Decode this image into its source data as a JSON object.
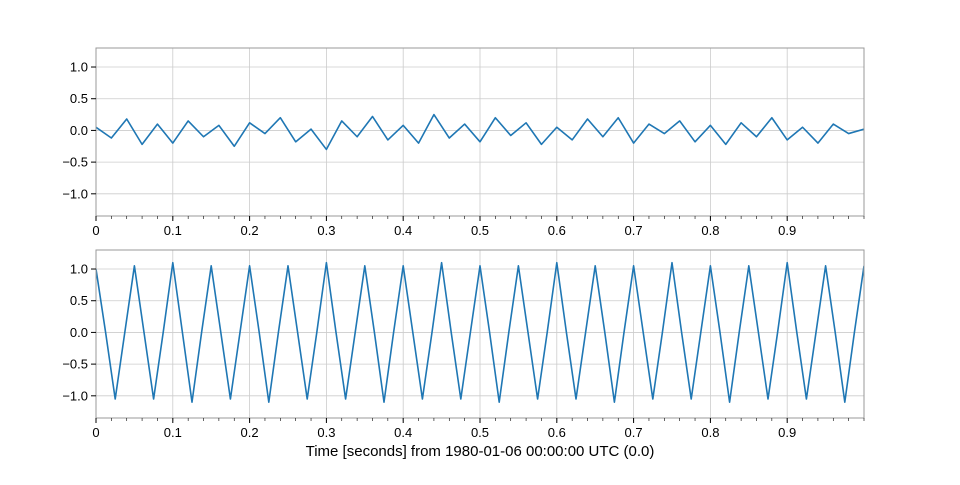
{
  "chart_data": [
    {
      "type": "line",
      "title": "",
      "xlabel": "",
      "ylabel": "",
      "xlim": [
        0,
        1
      ],
      "ylim": [
        -1.35,
        1.3
      ],
      "grid": true,
      "xticks": [
        0,
        0.1,
        0.2,
        0.3,
        0.4,
        0.5,
        0.6,
        0.7,
        0.8,
        0.9
      ],
      "xticklabels": [
        "0",
        "0.1",
        "0.2",
        "0.3",
        "0.4",
        "0.5",
        "0.6",
        "0.7",
        "0.8",
        "0.9"
      ],
      "yticks": [
        -1.0,
        -0.5,
        0.0,
        0.5,
        1.0
      ],
      "yticklabels": [
        "−1.0",
        "−0.5",
        "0.0",
        "0.5",
        "1.0"
      ],
      "color": "#1f77b4",
      "series": [
        {
          "description": "noise around zero",
          "x": [
            0,
            0.02,
            0.04,
            0.06,
            0.08,
            0.1,
            0.12,
            0.14,
            0.16,
            0.18,
            0.2,
            0.22,
            0.24,
            0.26,
            0.28,
            0.3,
            0.32,
            0.34,
            0.36,
            0.38,
            0.4,
            0.42,
            0.44,
            0.46,
            0.48,
            0.5,
            0.52,
            0.54,
            0.56,
            0.58,
            0.6,
            0.62,
            0.64,
            0.66,
            0.68,
            0.7,
            0.72,
            0.74,
            0.76,
            0.78,
            0.8,
            0.82,
            0.84,
            0.86,
            0.88,
            0.9,
            0.92,
            0.94,
            0.96,
            0.98,
            1.0
          ],
          "y": [
            0.05,
            -0.12,
            0.18,
            -0.22,
            0.1,
            -0.2,
            0.15,
            -0.1,
            0.08,
            -0.25,
            0.12,
            -0.05,
            0.2,
            -0.18,
            0.02,
            -0.3,
            0.15,
            -0.1,
            0.22,
            -0.15,
            0.08,
            -0.2,
            0.25,
            -0.12,
            0.1,
            -0.18,
            0.2,
            -0.08,
            0.12,
            -0.22,
            0.05,
            -0.15,
            0.18,
            -0.1,
            0.2,
            -0.2,
            0.1,
            -0.05,
            0.15,
            -0.18,
            0.08,
            -0.22,
            0.12,
            -0.1,
            0.2,
            -0.15,
            0.05,
            -0.2,
            0.1,
            -0.05,
            0.02
          ]
        }
      ]
    },
    {
      "type": "line",
      "title": "",
      "xlabel": "Time [seconds] from 1980-01-06 00:00:00 UTC (0.0)",
      "ylabel": "",
      "xlim": [
        0,
        1
      ],
      "ylim": [
        -1.35,
        1.3
      ],
      "grid": true,
      "xticks": [
        0,
        0.1,
        0.2,
        0.3,
        0.4,
        0.5,
        0.6,
        0.7,
        0.8,
        0.9
      ],
      "xticklabels": [
        "0",
        "0.1",
        "0.2",
        "0.3",
        "0.4",
        "0.5",
        "0.6",
        "0.7",
        "0.8",
        "0.9"
      ],
      "yticks": [
        -1.0,
        -0.5,
        0.0,
        0.5,
        1.0
      ],
      "yticklabels": [
        "−1.0",
        "−0.5",
        "0.0",
        "0.5",
        "1.0"
      ],
      "color": "#1f77b4",
      "series": [
        {
          "description": "sinusoid, about 20 cycles per second, amplitude about 1, with small noise",
          "x": [
            0,
            0.0125,
            0.025,
            0.0375,
            0.05,
            0.0625,
            0.075,
            0.0875,
            0.1,
            0.1125,
            0.125,
            0.1375,
            0.15,
            0.1625,
            0.175,
            0.1875,
            0.2,
            0.2125,
            0.225,
            0.2375,
            0.25,
            0.2625,
            0.275,
            0.2875,
            0.3,
            0.3125,
            0.325,
            0.3375,
            0.35,
            0.3625,
            0.375,
            0.3875,
            0.4,
            0.4125,
            0.425,
            0.4375,
            0.45,
            0.4625,
            0.475,
            0.4875,
            0.5,
            0.5125,
            0.525,
            0.5375,
            0.55,
            0.5625,
            0.575,
            0.5875,
            0.6,
            0.6125,
            0.625,
            0.6375,
            0.65,
            0.6625,
            0.675,
            0.6875,
            0.7,
            0.7125,
            0.725,
            0.7375,
            0.75,
            0.7625,
            0.775,
            0.7875,
            0.8,
            0.8125,
            0.825,
            0.8375,
            0.85,
            0.8625,
            0.875,
            0.8875,
            0.9,
            0.9125,
            0.925,
            0.9375,
            0.95,
            0.9625,
            0.975,
            0.9875,
            1.0
          ],
          "y": [
            1.0,
            0.0,
            -1.05,
            0.0,
            1.05,
            0.0,
            -1.05,
            0.0,
            1.1,
            0.0,
            -1.1,
            0.0,
            1.05,
            0.0,
            -1.05,
            0.0,
            1.05,
            0.0,
            -1.1,
            0.0,
            1.05,
            0.0,
            -1.05,
            0.0,
            1.1,
            0.0,
            -1.05,
            0.0,
            1.05,
            0.0,
            -1.1,
            0.0,
            1.05,
            0.0,
            -1.05,
            0.0,
            1.1,
            0.0,
            -1.05,
            0.0,
            1.05,
            0.0,
            -1.1,
            0.0,
            1.05,
            0.0,
            -1.05,
            0.0,
            1.1,
            0.0,
            -1.05,
            0.0,
            1.05,
            0.0,
            -1.1,
            0.0,
            1.05,
            0.0,
            -1.05,
            0.0,
            1.1,
            0.0,
            -1.05,
            0.0,
            1.05,
            0.0,
            -1.1,
            0.0,
            1.05,
            0.0,
            -1.05,
            0.0,
            1.1,
            0.0,
            -1.05,
            0.0,
            1.05,
            0.0,
            -1.1,
            0.0,
            1.05
          ]
        }
      ]
    }
  ]
}
